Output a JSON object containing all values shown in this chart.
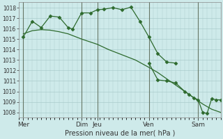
{
  "background_color": "#ceeaea",
  "grid_color": "#aacccc",
  "line_color": "#2d6a2d",
  "marker_color": "#2d6a2d",
  "title": "Pression niveau de la mer( hPa )",
  "ylim": [
    1007.5,
    1018.5
  ],
  "yticks": [
    1008,
    1009,
    1010,
    1011,
    1012,
    1013,
    1014,
    1015,
    1016,
    1017,
    1018
  ],
  "day_labels": [
    "Mer",
    "Dim",
    "Jeu",
    "Ven",
    "Sam"
  ],
  "day_x": [
    0,
    13,
    16.5,
    28,
    39
  ],
  "vline_x": [
    0,
    13,
    16.5,
    28,
    39
  ],
  "xlim": [
    -1,
    44
  ],
  "vline_color": "#667766",
  "series1_x": [
    0,
    2,
    4,
    6,
    8,
    10,
    11,
    13,
    15,
    16.5,
    18,
    20,
    22,
    24,
    26,
    28,
    30,
    32,
    34
  ],
  "series1_y": [
    1015.2,
    1016.7,
    1016.1,
    1017.2,
    1017.1,
    1016.1,
    1015.95,
    1017.5,
    1017.5,
    1017.8,
    1017.85,
    1018.0,
    1017.8,
    1018.05,
    1016.7,
    1015.2,
    1013.6,
    1012.8,
    1012.7
  ],
  "series2_x": [
    0,
    2,
    4,
    6,
    8,
    10,
    13,
    16.5,
    19,
    22,
    25,
    28,
    30,
    32,
    34,
    36,
    38,
    40,
    42,
    44
  ],
  "series2_y": [
    1015.5,
    1015.8,
    1015.9,
    1015.85,
    1015.7,
    1015.5,
    1015.0,
    1014.5,
    1014.0,
    1013.5,
    1013.0,
    1012.3,
    1011.8,
    1011.2,
    1010.6,
    1010.0,
    1009.4,
    1008.8,
    1008.3,
    1008.0
  ],
  "series3_x": [
    28,
    30,
    32,
    34,
    36,
    37,
    38,
    39,
    40,
    41,
    42,
    43,
    44
  ],
  "series3_y": [
    1012.7,
    1011.1,
    1011.0,
    1010.8,
    1010.0,
    1009.7,
    1009.4,
    1009.2,
    1008.0,
    1007.9,
    1009.3,
    1009.2,
    1009.2
  ]
}
